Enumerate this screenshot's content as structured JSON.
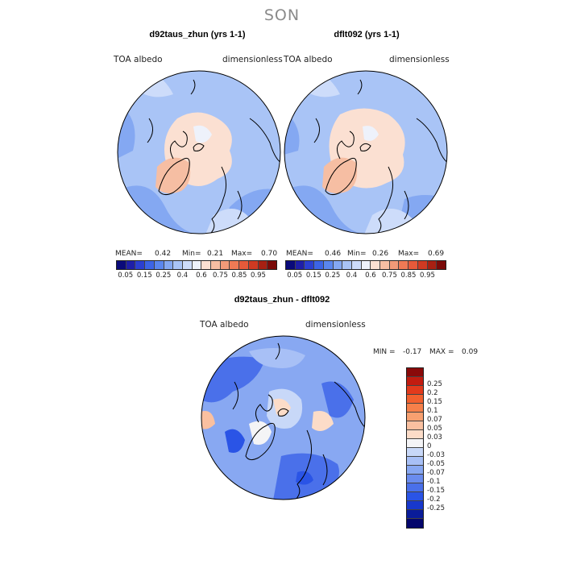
{
  "season": "SON",
  "panel1": {
    "title": "d92taus_zhun (yrs 1-1)",
    "var_label": "TOA albedo",
    "units_label": "dimensionless",
    "mean_label": "MEAN=",
    "mean": "0.42",
    "min_label": "Min=",
    "min": "0.21",
    "max_label": "Max=",
    "max": "0.70"
  },
  "panel2": {
    "title": "dflt092 (yrs 1-1)",
    "var_label": "TOA albedo",
    "units_label": "dimensionless",
    "mean_label": "MEAN=",
    "mean": "0.46",
    "min_label": "Min=",
    "min": "0.26",
    "max_label": "Max=",
    "max": "0.69"
  },
  "colorbar_top": {
    "colors": [
      "#0a0a7a",
      "#1e1ea8",
      "#2b3fd1",
      "#3c64e6",
      "#5a86ee",
      "#84a8f2",
      "#a9c4f6",
      "#cddcfa",
      "#eef2fb",
      "#fbe0d2",
      "#f6bea3",
      "#f29a78",
      "#ee7a55",
      "#e65a3a",
      "#d03a22",
      "#a82012",
      "#7a0a08"
    ],
    "ticks": [
      "0.05",
      "0.15",
      "0.25",
      "0.4",
      "0.6",
      "0.75",
      "0.85",
      "0.95"
    ]
  },
  "panel3": {
    "title": "d92taus_zhun - dflt092",
    "var_label": "TOA albedo",
    "units_label": "dimensionless",
    "min_label": "MIN =",
    "min": "-0.17",
    "max_label": "MAX =",
    "max": "0.09"
  },
  "colorbar_diff": {
    "colors": [
      "#8a0a0a",
      "#c21c10",
      "#e23a1c",
      "#f2602e",
      "#f6804a",
      "#f8a070",
      "#fac0a0",
      "#fcdcc8",
      "#f4f4f6",
      "#c8d8f8",
      "#a8c0f6",
      "#88a8f2",
      "#6a8cee",
      "#4a70ea",
      "#2a54e6",
      "#1838cc",
      "#0a1c9a",
      "#04066c"
    ],
    "ticks": [
      "0.25",
      "0.2",
      "0.15",
      "0.1",
      "0.07",
      "0.05",
      "0.03",
      "0",
      "-0.03",
      "-0.05",
      "-0.07",
      "-0.1",
      "-0.15",
      "-0.2",
      "-0.25"
    ]
  }
}
